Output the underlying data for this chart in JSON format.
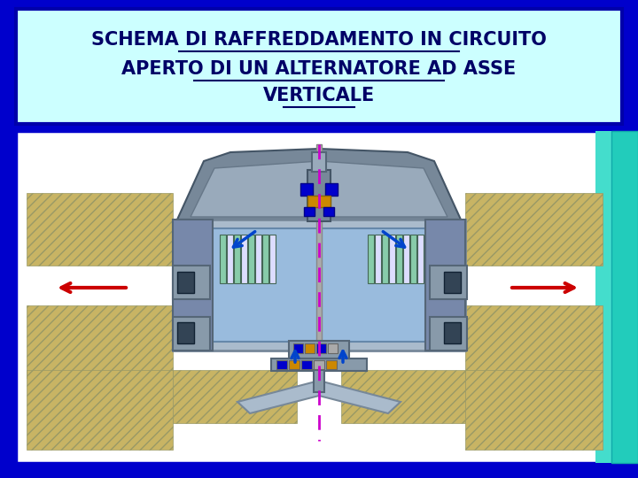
{
  "title_line1": "SCHEMA DI RAFFREDDAMENTO IN CIRCUITO",
  "title_line2": "APERTO DI UN ALTERNATORE AD ASSE",
  "title_line3": "VERTICALE",
  "bg_color": "#0000cc",
  "title_bg": "#ccffff",
  "title_border": "#0000aa",
  "diagram_bg": "#ffffff",
  "diagram_border": "#0000cc",
  "hatch_color": "#c8b464",
  "housing_gray": "#778899",
  "housing_light": "#99aabb",
  "end_cap": "#7788aa",
  "rotor_blue": "#99bbdd",
  "stator_green": "#88ccaa",
  "stator_white": "#ddddff",
  "shaft_gray": "#aaaaaa",
  "fan_dark": "#334455",
  "duct_gray": "#889aaa",
  "prop_blue": "#aabbcc",
  "arrow_blue": "#0044cc",
  "arrow_red": "#cc0000",
  "axis_color": "#cc00cc",
  "accent_blue": "#0000cc",
  "accent_brown": "#cc8800",
  "teal": "#22ccbb",
  "cyan_strip": "#44ddcc"
}
